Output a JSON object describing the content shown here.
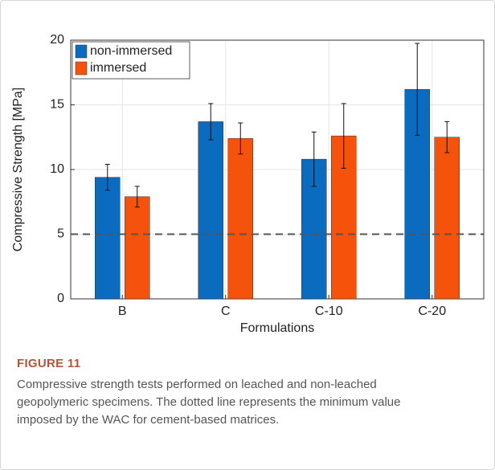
{
  "chart_data": {
    "type": "bar",
    "categories": [
      "B",
      "C",
      "C-10",
      "C-20"
    ],
    "series": [
      {
        "name": "non-immersed",
        "color": "#0b6bbf",
        "values": [
          9.4,
          13.7,
          10.8,
          16.2
        ],
        "errors": [
          1.0,
          1.4,
          2.1,
          3.55
        ]
      },
      {
        "name": "immersed",
        "color": "#f5520c",
        "values": [
          7.9,
          12.4,
          12.6,
          12.5
        ],
        "errors": [
          0.8,
          1.2,
          2.5,
          1.2
        ]
      }
    ],
    "ylabel": "Compressive Strength [MPa]",
    "xlabel": "Formulations",
    "ylim": [
      0,
      20
    ],
    "yticks": [
      0,
      5,
      10,
      15,
      20
    ],
    "grid": true,
    "legend": "upper-left",
    "reference_line": 5
  },
  "figure_label": "FIGURE 11",
  "caption": "Compressive strength tests performed on leached and non-leached geopolymeric specimens. The dotted line represents the minimum value imposed by the WAC for cement-based matrices."
}
